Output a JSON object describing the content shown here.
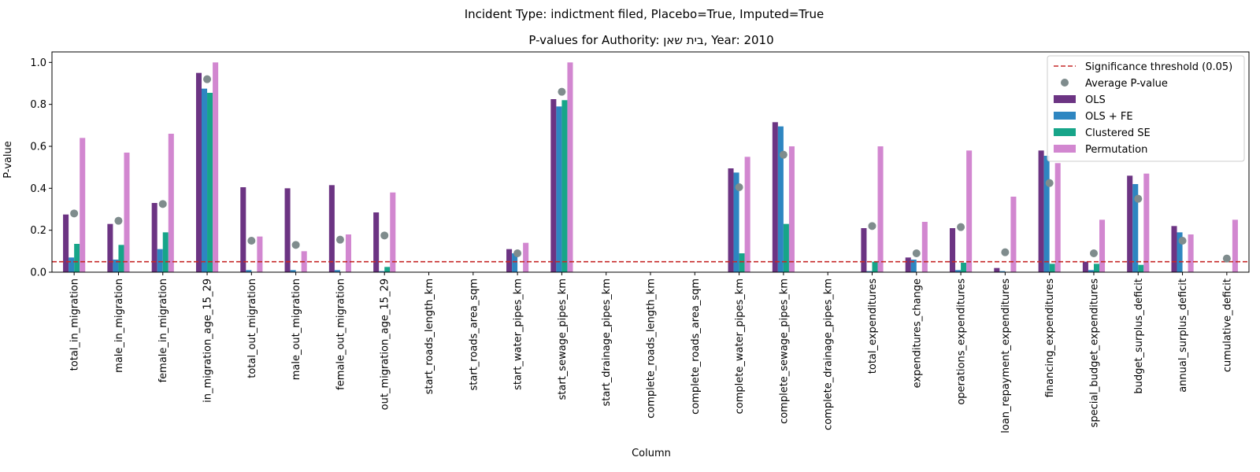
{
  "chart_data": {
    "type": "bar",
    "suptitle": "Incident Type: indictment filed, Placebo=True, Imputed=True",
    "title": "P-values for Authority: בית שאן, Year: 2010",
    "xlabel": "Column",
    "ylabel": "P-value",
    "ylim": [
      0,
      1.05
    ],
    "yticks": [
      "0.0",
      "0.2",
      "0.4",
      "0.6",
      "0.8",
      "1.0"
    ],
    "legend_position": "top-right",
    "threshold": {
      "value": 0.05,
      "label": "Significance threshold (0.05)",
      "color": "#c62828"
    },
    "average_label": "Average P-value",
    "average_color": "#7f8c8d",
    "categories": [
      "total_in_migration",
      "male_in_migration",
      "female_in_migration",
      "in_migration_age_15_29",
      "total_out_migration",
      "male_out_migration",
      "female_out_migration",
      "out_migration_age_15_29",
      "start_roads_length_km",
      "start_roads_area_sqm",
      "start_water_pipes_km",
      "start_sewage_pipes_km",
      "start_drainage_pipes_km",
      "complete_roads_length_km",
      "complete_roads_area_sqm",
      "complete_water_pipes_km",
      "complete_sewage_pipes_km",
      "complete_drainage_pipes_km",
      "total_expenditures",
      "expenditures_change",
      "operations_expenditures",
      "loan_repayment_expenditures",
      "financing_expenditures",
      "special_budget_expenditures",
      "budget_surplus_deficit",
      "annual_surplus_deficit",
      "cumulative_deficit"
    ],
    "series": [
      {
        "name": "OLS",
        "color": "#6c3483",
        "values": [
          0.275,
          0.23,
          0.33,
          0.95,
          0.405,
          0.4,
          0.415,
          0.285,
          0,
          0,
          0.11,
          0.825,
          0,
          0,
          0,
          0.495,
          0.715,
          0,
          0.21,
          0.07,
          0.21,
          0.02,
          0.58,
          0.05,
          0.46,
          0.22,
          0
        ]
      },
      {
        "name": "OLS + FE",
        "color": "#2e86c1",
        "values": [
          0.07,
          0.06,
          0.11,
          0.875,
          0.01,
          0.01,
          0.01,
          0.005,
          0,
          0,
          0.09,
          0.79,
          0,
          0,
          0,
          0.475,
          0.695,
          0,
          0.005,
          0.06,
          0.01,
          0.005,
          0.555,
          0.01,
          0.42,
          0.19,
          0
        ]
      },
      {
        "name": "Clustered SE",
        "color": "#17a589",
        "values": [
          0.135,
          0.13,
          0.19,
          0.855,
          0,
          0,
          0,
          0.025,
          0,
          0,
          0,
          0.82,
          0,
          0,
          0,
          0.09,
          0.23,
          0,
          0.05,
          0,
          0.045,
          0,
          0.04,
          0.04,
          0.035,
          0,
          0
        ]
      },
      {
        "name": "Permutation",
        "color": "#d287d0",
        "values": [
          0.64,
          0.57,
          0.66,
          1.0,
          0.17,
          0.1,
          0.18,
          0.38,
          0,
          0,
          0.14,
          1.0,
          0,
          0,
          0,
          0.55,
          0.6,
          0,
          0.6,
          0.24,
          0.58,
          0.36,
          0.52,
          0.25,
          0.47,
          0.18,
          0.25
        ]
      }
    ],
    "average": [
      0.28,
      0.245,
      0.325,
      0.92,
      0.15,
      0.13,
      0.155,
      0.175,
      null,
      null,
      0.09,
      0.86,
      null,
      null,
      null,
      0.405,
      0.56,
      null,
      0.22,
      0.09,
      0.215,
      0.095,
      0.425,
      0.09,
      0.35,
      0.15,
      0.065
    ]
  }
}
